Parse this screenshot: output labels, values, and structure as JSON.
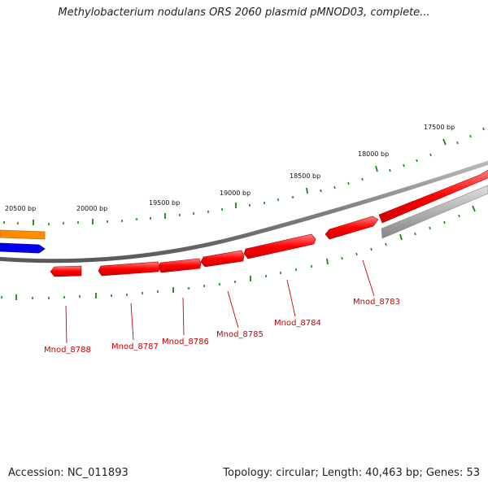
{
  "title": "Methylobacterium nodulans ORS 2060 plasmid pMNOD03, complete...",
  "accession_text": "Accession: NC_011893",
  "summary_text": "Topology: circular; Length: 40,463 bp; Genes: 53",
  "scale_labels": [
    "20500 bp",
    "20000 bp",
    "19500 bp",
    "19000 bp",
    "18500 bp",
    "18000 bp",
    "17500 bp"
  ],
  "gene_labels": [
    "Mnod_8783",
    "Mnod_8784",
    "Mnod_8785",
    "Mnod_8786",
    "Mnod_8787",
    "Mnod_8788"
  ],
  "colors": {
    "gene_forward": "#ff0000",
    "gene_reverse": "#ff0000",
    "gene_orange": "#ff8c00",
    "gene_blue": "#0000ee",
    "gene_gray": "#b0b0b0",
    "backbone": "#808080",
    "tick": "#118811",
    "label_red": "#cc0000"
  }
}
